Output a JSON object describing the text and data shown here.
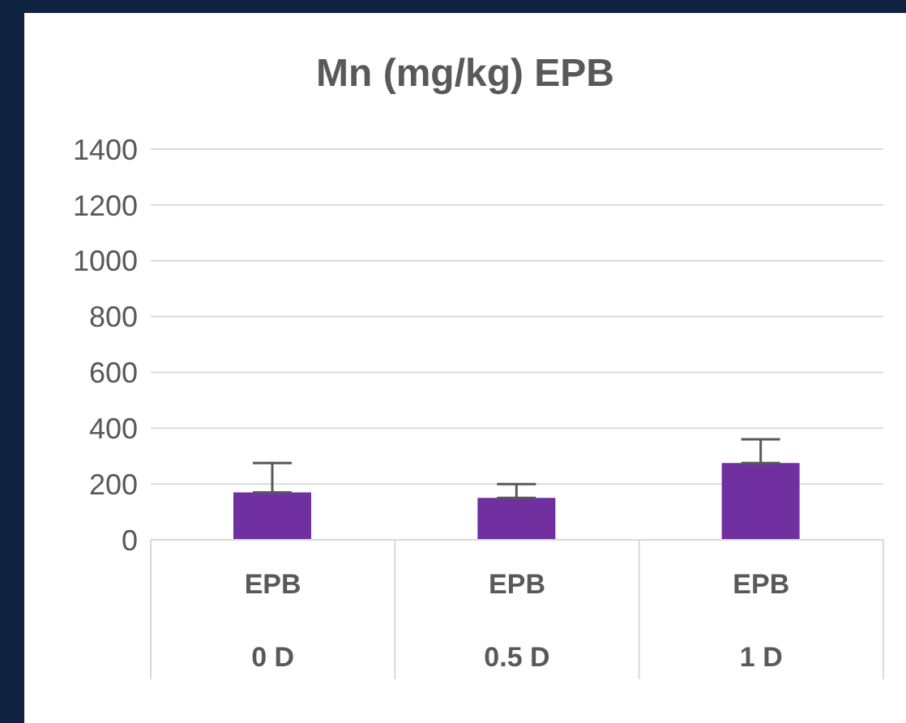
{
  "chart_data": {
    "type": "bar",
    "title": "Mn (mg/kg) EPB",
    "categories": [
      "EPB\n0 D",
      "EPB\n0.5 D",
      "EPB\n1 D"
    ],
    "values": [
      170,
      150,
      275
    ],
    "errors": [
      [
        170,
        275
      ],
      [
        150,
        200
      ],
      [
        275,
        360
      ]
    ],
    "color": "#7030a0",
    "ylim": [
      0,
      1400
    ],
    "yticks": [
      0,
      200,
      400,
      600,
      800,
      1000,
      1200,
      1400
    ],
    "grid": "y"
  }
}
